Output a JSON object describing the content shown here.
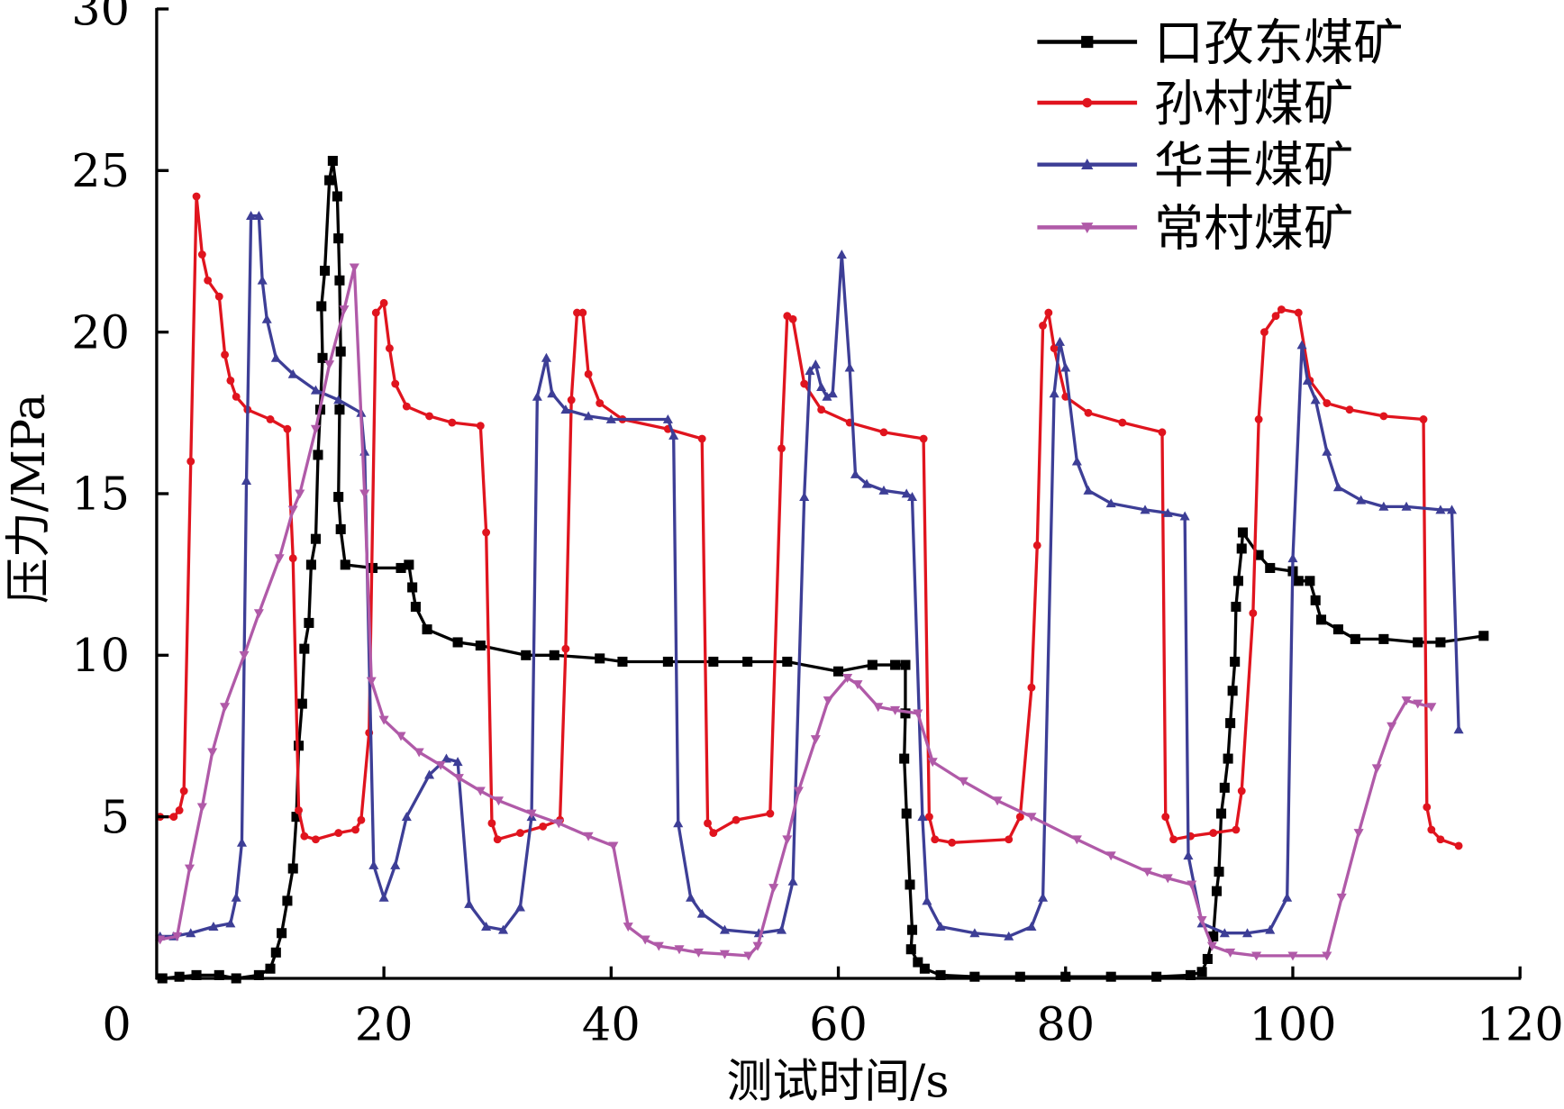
{
  "chart_data": {
    "type": "line",
    "title": "",
    "xlabel": "测试时间/s",
    "ylabel": "压力/MPa",
    "xlim": [
      0,
      120
    ],
    "ylim": [
      0,
      30
    ],
    "xticks": [
      "0",
      "20",
      "40",
      "60",
      "80",
      "100",
      "120"
    ],
    "yticks": [
      "5",
      "10",
      "15",
      "20",
      "25",
      "30"
    ],
    "legend_position": "top-right",
    "grid": false,
    "series": [
      {
        "name": "口孜东煤矿",
        "color": "#000000",
        "marker": "square",
        "x": [
          0.5,
          2,
          3.5,
          5.5,
          7,
          9,
          10,
          10.5,
          11,
          11.5,
          12,
          12.3,
          12.5,
          12.8,
          13,
          13.4,
          13.6,
          14,
          14.2,
          14.4,
          14.6,
          14.5,
          14.8,
          15.2,
          15.5,
          15.9,
          16,
          16.1,
          16.2,
          16.1,
          16,
          16.2,
          16.6,
          19,
          21.5,
          22.2,
          22.5,
          22.8,
          23.8,
          26.5,
          28.5,
          32.5,
          35,
          39,
          41,
          45,
          49,
          52,
          55.5,
          60,
          63,
          65,
          65.9,
          65.9,
          65.8,
          66,
          66.3,
          66.5,
          66.4,
          67,
          67.6,
          69,
          72,
          76,
          80,
          84,
          88,
          91,
          92,
          92.5,
          93,
          93.3,
          93.5,
          93.7,
          94,
          94.3,
          94.5,
          94.7,
          94.9,
          95,
          95.2,
          95.5,
          95.6,
          97,
          98,
          100,
          100.5,
          101.5,
          102,
          102.5,
          104,
          105.5,
          108,
          111,
          113,
          116.8
        ],
        "y": [
          0,
          0.05,
          0.1,
          0.1,
          0,
          0.1,
          0.3,
          0.8,
          1.4,
          2.4,
          3.4,
          5,
          7.2,
          8.5,
          10.2,
          11,
          12.8,
          13.6,
          16.2,
          17.6,
          19.2,
          20.8,
          21.9,
          24.7,
          25.3,
          24.2,
          22.9,
          21.6,
          19.4,
          17.6,
          14.9,
          13.9,
          12.8,
          12.7,
          12.7,
          12.8,
          12.1,
          11.5,
          10.8,
          10.4,
          10.3,
          10,
          10,
          9.9,
          9.8,
          9.8,
          9.8,
          9.8,
          9.8,
          9.5,
          9.7,
          9.7,
          9.7,
          8.2,
          6.8,
          5.1,
          2.9,
          1.5,
          0.9,
          0.5,
          0.3,
          0.1,
          0.05,
          0.05,
          0.05,
          0.05,
          0.05,
          0.1,
          0.2,
          0.6,
          1.3,
          2.7,
          3.3,
          5.1,
          5.9,
          6.8,
          7.9,
          8.9,
          9.8,
          11.5,
          12.3,
          13.3,
          13.8,
          13.1,
          12.7,
          12.6,
          12.3,
          12.3,
          11.7,
          11.1,
          10.8,
          10.5,
          10.5,
          10.4,
          10.4,
          10.6
        ]
      },
      {
        "name": "孙村煤矿",
        "color": "#e0141e",
        "marker": "circle",
        "x": [
          0.3,
          1.5,
          2,
          2.4,
          3,
          3.5,
          4,
          4.5,
          5.5,
          6,
          6.5,
          7,
          8,
          10,
          11.5,
          12,
          12.5,
          13,
          14,
          16,
          17.5,
          18,
          18.7,
          19.3,
          20,
          20.5,
          21,
          22,
          24,
          26,
          28.5,
          29,
          29.5,
          30,
          32,
          34,
          35.5,
          36,
          36.5,
          37,
          37.5,
          38,
          39,
          41,
          45,
          48,
          48.5,
          49,
          51,
          54,
          55,
          55.5,
          56,
          57,
          58.5,
          61,
          64,
          67.5,
          68,
          68.5,
          70,
          75,
          76,
          77,
          77.5,
          78,
          78.5,
          79,
          80,
          82,
          85,
          88.5,
          88.8,
          89.5,
          91,
          93,
          95,
          95.5,
          96.5,
          97,
          97.5,
          98.5,
          99,
          100.5,
          101.5,
          103,
          105,
          108,
          111.5,
          111.8,
          112.2,
          113,
          114.6
        ],
        "y": [
          5,
          5,
          5.2,
          5.8,
          16,
          24.2,
          22.4,
          21.6,
          21.1,
          19.3,
          18.5,
          18,
          17.6,
          17.3,
          17,
          13,
          5.2,
          4.4,
          4.3,
          4.5,
          4.6,
          4.9,
          7.6,
          20.6,
          20.9,
          19.5,
          18.4,
          17.7,
          17.4,
          17.2,
          17.1,
          13.8,
          4.8,
          4.3,
          4.5,
          4.7,
          4.9,
          10.2,
          17.9,
          20.6,
          20.6,
          18.7,
          17.8,
          17.3,
          17,
          16.7,
          4.8,
          4.5,
          4.9,
          5.1,
          16.4,
          20.5,
          20.4,
          18.4,
          17.6,
          17.2,
          16.9,
          16.7,
          5,
          4.3,
          4.2,
          4.3,
          5,
          9,
          13.4,
          20.2,
          20.6,
          19.5,
          18,
          17.5,
          17.2,
          16.9,
          5,
          4.3,
          4.4,
          4.5,
          4.6,
          5.8,
          11.3,
          17.3,
          20,
          20.5,
          20.7,
          20.6,
          18.5,
          17.8,
          17.6,
          17.4,
          17.3,
          5.3,
          4.6,
          4.3,
          4.1
        ]
      },
      {
        "name": "华丰煤矿",
        "color": "#3d3e96",
        "marker": "triangle-up",
        "x": [
          0.3,
          1.5,
          3,
          5,
          6.5,
          7,
          7.5,
          7.9,
          8.3,
          9,
          9.3,
          9.7,
          10.5,
          12,
          14,
          16,
          18,
          18.3,
          19.1,
          20,
          21,
          22,
          24,
          25.5,
          26.5,
          27.5,
          29,
          30.5,
          32,
          33,
          33.5,
          34.3,
          34.8,
          36,
          38,
          40,
          45,
          45.5,
          45.9,
          47,
          48,
          50,
          53,
          55,
          56,
          57,
          57.5,
          58,
          58.5,
          59,
          59.5,
          60.3,
          61,
          61.5,
          62.5,
          64,
          66,
          66.5,
          67.4,
          67.8,
          69,
          72,
          75,
          77,
          78,
          79,
          79.5,
          80,
          81,
          82,
          84,
          87,
          89,
          90.5,
          90.8,
          92,
          94,
          96,
          98,
          99.5,
          100,
          100.8,
          101.3,
          102,
          103,
          104,
          106,
          108,
          110,
          113,
          114,
          114.6
        ],
        "y": [
          1.3,
          1.3,
          1.4,
          1.6,
          1.7,
          2.5,
          4.2,
          15.4,
          23.6,
          23.6,
          21.6,
          20.4,
          19.2,
          18.7,
          18.2,
          17.9,
          17.5,
          16.3,
          3.5,
          2.5,
          3.5,
          5,
          6.3,
          6.8,
          6.7,
          2.3,
          1.6,
          1.5,
          2.2,
          5,
          18,
          19.2,
          18.1,
          17.6,
          17.4,
          17.3,
          17.3,
          16.8,
          4.8,
          2.5,
          2,
          1.5,
          1.4,
          1.5,
          3,
          14.9,
          18.8,
          19,
          18.3,
          18,
          18.1,
          22.4,
          18.9,
          15.6,
          15.3,
          15.1,
          15,
          14.9,
          5,
          2.4,
          1.6,
          1.4,
          1.3,
          1.6,
          2.5,
          18.1,
          19.7,
          18.9,
          16,
          15.1,
          14.7,
          14.5,
          14.4,
          14.3,
          3.8,
          1.7,
          1.4,
          1.4,
          1.5,
          2.5,
          13,
          19.6,
          18.5,
          17.9,
          16.3,
          15.2,
          14.8,
          14.6,
          14.6,
          14.5,
          14.5,
          7.7
        ]
      },
      {
        "name": "常村煤矿",
        "color": "#b05aa8",
        "marker": "triangle-down",
        "x": [
          0.3,
          1.8,
          2.9,
          4,
          4.9,
          6,
          7.7,
          9,
          10.8,
          12,
          12.6,
          14,
          15.2,
          16.5,
          17.4,
          18.3,
          18.9,
          20,
          21.5,
          23.1,
          25,
          26.6,
          28.5,
          30.1,
          33,
          35.4,
          38,
          40.2,
          41.5,
          43,
          44.2,
          46,
          47.7,
          50,
          52.1,
          52.9,
          54.3,
          55.5,
          56.5,
          58,
          59.1,
          60.8,
          61.7,
          63.5,
          65,
          67,
          68.3,
          71,
          74,
          77,
          81,
          84,
          87.2,
          89,
          91.1,
          92,
          92.9,
          94.5,
          96.8,
          100,
          103,
          104.3,
          105.8,
          107.4,
          108.7,
          110,
          111,
          112.2
        ],
        "y": [
          1.2,
          1.3,
          3.4,
          5.3,
          7,
          8.4,
          10,
          11.3,
          13,
          14.5,
          15,
          17,
          19,
          20.7,
          22,
          15,
          9.2,
          8,
          7.5,
          7,
          6.6,
          6.2,
          5.8,
          5.5,
          5.1,
          4.8,
          4.4,
          4.1,
          1.6,
          1.2,
          1,
          0.9,
          0.8,
          0.75,
          0.7,
          1,
          2.8,
          4.3,
          5.8,
          7.4,
          8.6,
          9.3,
          9.1,
          8.4,
          8.3,
          8.2,
          6.7,
          6.1,
          5.5,
          5,
          4.3,
          3.8,
          3.3,
          3.1,
          2.9,
          1.8,
          1,
          0.8,
          0.7,
          0.7,
          0.7,
          2.5,
          4.5,
          6.5,
          7.8,
          8.6,
          8.5,
          8.4
        ]
      }
    ]
  }
}
